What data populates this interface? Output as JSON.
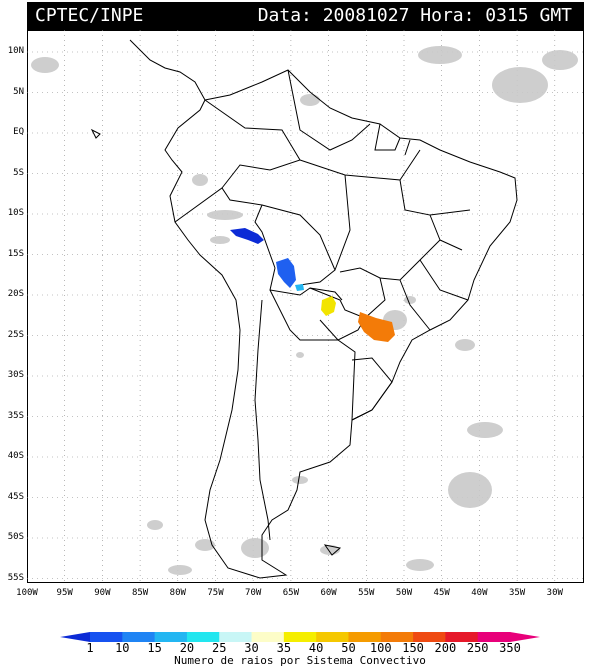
{
  "header": {
    "source": "CPTEC/INPE",
    "date_label": "Data:",
    "date_value": "20081027",
    "time_label": "Hora:",
    "time_value": "0315 GMT"
  },
  "map": {
    "lat_labels": [
      "10N",
      "5N",
      "EQ",
      "5S",
      "10S",
      "15S",
      "20S",
      "25S",
      "30S",
      "35S",
      "40S",
      "45S",
      "50S",
      "55S"
    ],
    "lon_labels": [
      "100W",
      "95W",
      "90W",
      "85W",
      "80W",
      "75W",
      "70W",
      "65W",
      "60W",
      "55W",
      "50W",
      "45W",
      "40W",
      "35W",
      "30W"
    ],
    "lightning_clusters": [
      {
        "name": "cluster-bolivia-north",
        "value_class": "1",
        "color": "#0c2bd6"
      },
      {
        "name": "cluster-bolivia-central",
        "value_class": "10",
        "color": "#1f60f0"
      },
      {
        "name": "cluster-bolivia-south",
        "value_class": "20",
        "color": "#23b6f2"
      },
      {
        "name": "cluster-paraguay",
        "value_class": "40",
        "color": "#f2e400"
      },
      {
        "name": "cluster-parana",
        "value_class": "150",
        "color": "#f37b08"
      }
    ]
  },
  "legend": {
    "title": "Numero de raios por Sistema Convectivo",
    "ticks": [
      "1",
      "10",
      "15",
      "20",
      "25",
      "30",
      "35",
      "40",
      "50",
      "100",
      "150",
      "200",
      "250",
      "350"
    ],
    "colors": [
      "#0c2bd6",
      "#1652f0",
      "#1f84f4",
      "#23b6f2",
      "#22e6ef",
      "#c8f6f6",
      "#fdfdc8",
      "#f5ee00",
      "#f5c800",
      "#f59b00",
      "#f37b08",
      "#ef4a12",
      "#e6192a",
      "#e8007a"
    ]
  }
}
